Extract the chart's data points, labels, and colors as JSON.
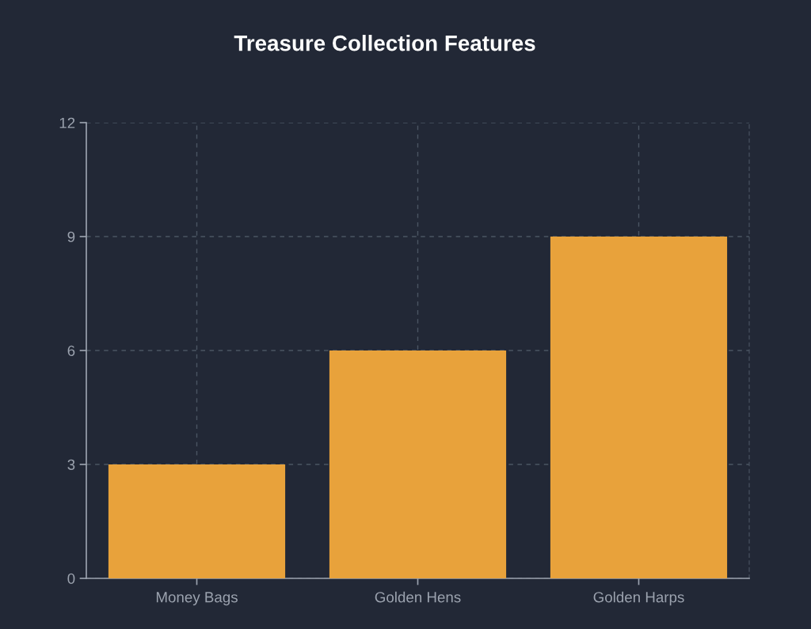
{
  "chart_data": {
    "type": "bar",
    "title": "Treasure Collection Features",
    "categories": [
      "Money Bags",
      "Golden Hens",
      "Golden Harps"
    ],
    "values": [
      3,
      6,
      9
    ],
    "color": "#e8a23b",
    "ylim": [
      0,
      12
    ],
    "yticks": [
      0,
      3,
      6,
      9,
      12
    ],
    "grid": true,
    "legend": false
  }
}
